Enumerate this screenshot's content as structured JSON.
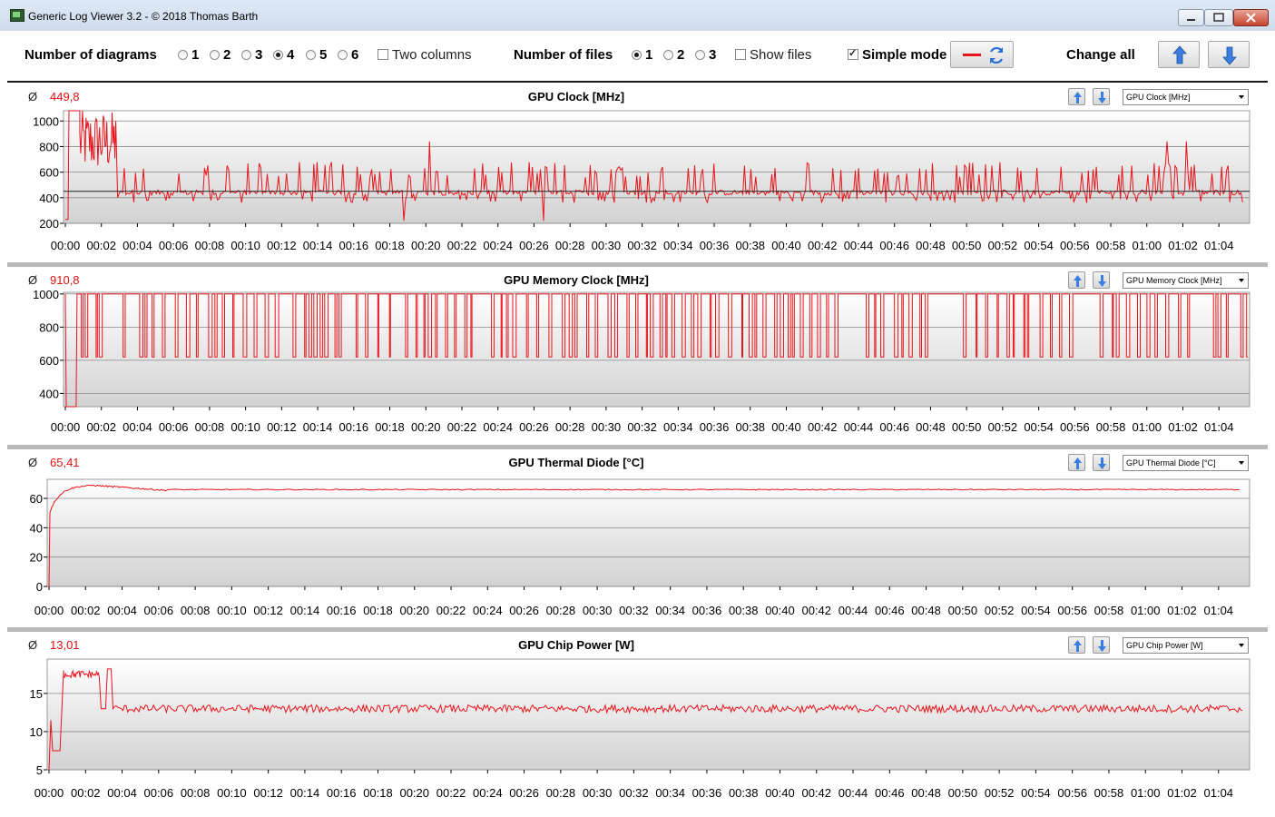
{
  "window": {
    "title": "Generic Log Viewer 3.2 - © 2018 Thomas Barth"
  },
  "toolbar": {
    "diagrams_label": "Number of diagrams",
    "diagram_options": [
      "1",
      "2",
      "3",
      "4",
      "5",
      "6"
    ],
    "diagram_selected": "4",
    "two_columns_label": "Two columns",
    "two_columns_checked": false,
    "files_label": "Number of files",
    "file_options": [
      "1",
      "2",
      "3"
    ],
    "file_selected": "1",
    "show_files_label": "Show files",
    "show_files_checked": false,
    "simple_mode_label": "Simple mode",
    "simple_mode_checked": true,
    "change_all_label": "Change all"
  },
  "colors": {
    "series": "#e8141b",
    "accent": "#2a6fd6"
  },
  "chart_data": [
    {
      "type": "line",
      "title": "GPU Clock [MHz]",
      "avg_symbol": "Ø",
      "average": "449,8",
      "dropdown": "GPU Clock [MHz]",
      "yticks": [
        "1000",
        "800",
        "600",
        "400",
        "200"
      ],
      "ylim": [
        200,
        1080
      ],
      "xticks": [
        "00:00",
        "00:02",
        "00:04",
        "00:06",
        "00:08",
        "00:10",
        "00:12",
        "00:14",
        "00:16",
        "00:18",
        "00:20",
        "00:22",
        "00:24",
        "00:26",
        "00:28",
        "00:30",
        "00:32",
        "00:34",
        "00:36",
        "00:38",
        "00:40",
        "00:42",
        "00:44",
        "00:46",
        "00:48",
        "00:50",
        "00:52",
        "00:54",
        "00:56",
        "00:58",
        "01:00",
        "01:02",
        "01:04"
      ],
      "series": [
        {
          "mode": "spiky",
          "base": 440,
          "lo": 360,
          "hi": 560,
          "spikes": [
            [
              "00:00",
              1080
            ],
            [
              "00:01",
              900
            ],
            [
              "00:02",
              950
            ],
            [
              "00:03",
              700
            ],
            [
              "00:20",
              840
            ],
            [
              "01:01",
              840
            ],
            [
              "01:02",
              840
            ]
          ],
          "warmup": [
            [
              "00:00",
              230
            ],
            [
              "00:00.2",
              1080
            ]
          ]
        }
      ],
      "xmax_min": 65.6
    },
    {
      "type": "line",
      "title": "GPU Memory Clock [MHz]",
      "avg_symbol": "Ø",
      "average": "910,8",
      "dropdown": "GPU Memory Clock [MHz]",
      "yticks": [
        "1000",
        "800",
        "600",
        "400"
      ],
      "ylim": [
        320,
        1010
      ],
      "xticks": [
        "00:00",
        "00:02",
        "00:04",
        "00:06",
        "00:08",
        "00:10",
        "00:12",
        "00:14",
        "00:16",
        "00:18",
        "00:20",
        "00:22",
        "00:24",
        "00:26",
        "00:28",
        "00:30",
        "00:32",
        "00:34",
        "00:36",
        "00:38",
        "00:40",
        "00:42",
        "00:44",
        "00:46",
        "00:48",
        "00:50",
        "00:52",
        "00:54",
        "00:56",
        "00:58",
        "01:00",
        "01:02",
        "01:04"
      ],
      "series": [
        {
          "mode": "square",
          "high": 1000,
          "low": 620,
          "start_low": 320
        }
      ],
      "xmax_min": 65.6
    },
    {
      "type": "line",
      "title": "GPU Thermal Diode [°C]",
      "avg_symbol": "Ø",
      "average": "65,41",
      "dropdown": "GPU Thermal Diode [°C]",
      "yticks": [
        "60",
        "40",
        "20",
        "0"
      ],
      "ylim": [
        0,
        73
      ],
      "xticks": [
        "00:00",
        "00:02",
        "00:04",
        "00:06",
        "00:08",
        "00:10",
        "00:12",
        "00:14",
        "00:16",
        "00:18",
        "00:20",
        "00:22",
        "00:24",
        "00:26",
        "00:28",
        "00:30",
        "00:32",
        "00:34",
        "00:36",
        "00:38",
        "00:40",
        "00:42",
        "00:44",
        "00:46",
        "00:48",
        "00:50",
        "00:52",
        "00:54",
        "00:56",
        "00:58",
        "01:00",
        "01:02",
        "01:04"
      ],
      "series": [
        {
          "mode": "thermal",
          "plateau": 66
        }
      ],
      "xmax_min": 65.6
    },
    {
      "type": "line",
      "title": "GPU Chip Power [W]",
      "avg_symbol": "Ø",
      "average": "13,01",
      "dropdown": "GPU Chip Power [W]",
      "yticks": [
        "15",
        "10",
        "5"
      ],
      "ylim": [
        5,
        19.5
      ],
      "xticks": [
        "00:00",
        "00:02",
        "00:04",
        "00:06",
        "00:08",
        "00:10",
        "00:12",
        "00:14",
        "00:16",
        "00:18",
        "00:20",
        "00:22",
        "00:24",
        "00:26",
        "00:28",
        "00:30",
        "00:32",
        "00:34",
        "00:36",
        "00:38",
        "00:40",
        "00:42",
        "00:44",
        "00:46",
        "00:48",
        "00:50",
        "00:52",
        "00:54",
        "00:56",
        "00:58",
        "01:00",
        "01:02",
        "01:04"
      ],
      "series": [
        {
          "mode": "power",
          "base": 13
        }
      ],
      "xmax_min": 65.6
    }
  ]
}
